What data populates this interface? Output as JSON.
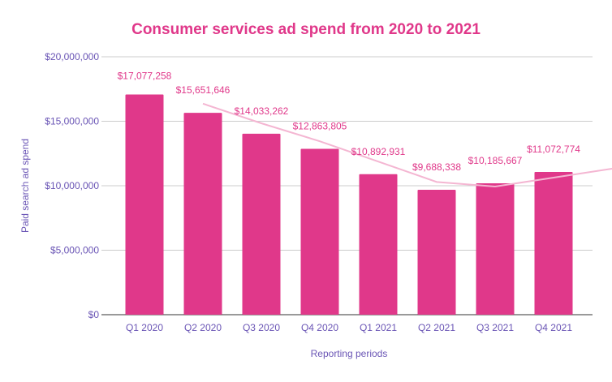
{
  "chart_data": {
    "type": "bar",
    "title": "Consumer services ad spend from 2020 to 2021",
    "xlabel": "Reporting periods",
    "ylabel": "Paid search ad spend",
    "categories": [
      "Q1 2020",
      "Q2 2020",
      "Q3 2020",
      "Q4 2020",
      "Q1 2021",
      "Q2 2021",
      "Q3 2021",
      "Q4 2021"
    ],
    "values": [
      17077258,
      15651646,
      14033262,
      12863805,
      10892931,
      9688338,
      10185667,
      11072774
    ],
    "data_labels": [
      "$17,077,258",
      "$15,651,646",
      "$14,033,262",
      "$12,863,805",
      "$10,892,931",
      "$9,688,338",
      "$10,185,667",
      "$11,072,774"
    ],
    "ylim": [
      0,
      20000000
    ],
    "yticks": [
      0,
      5000000,
      10000000,
      15000000,
      20000000
    ],
    "ytick_labels": [
      "$0",
      "$5,000,000",
      "$10,000,000",
      "$15,000,000",
      "$20,000,000"
    ],
    "grid": true,
    "trendline": {
      "type": "moving-average",
      "periods": 2
    },
    "colors": {
      "bar": "#e0388a",
      "title": "#e0388a",
      "label": "#e0388a",
      "axis_text": "#6a55b5",
      "trendline": "#f4b6d2",
      "grid": "#cccccc"
    }
  }
}
